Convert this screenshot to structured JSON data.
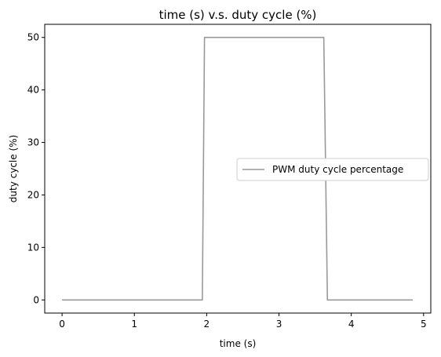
{
  "chart_data": {
    "type": "line",
    "title": "time (s) v.s. duty cycle (%)",
    "xlabel": "time (s)",
    "ylabel": "duty cycle (%)",
    "xlim": [
      -0.24,
      5.1
    ],
    "ylim": [
      -2.5,
      52.5
    ],
    "xticks": [
      0,
      1,
      2,
      3,
      4,
      5
    ],
    "yticks": [
      0,
      10,
      20,
      30,
      40,
      50
    ],
    "xtick_labels": [
      "0",
      "1",
      "2",
      "3",
      "4",
      "5"
    ],
    "ytick_labels": [
      "0",
      "10",
      "20",
      "30",
      "40",
      "50"
    ],
    "grid": false,
    "legend_position": "center-right",
    "series": [
      {
        "name": "PWM duty cycle percentage",
        "color": "#999999",
        "x": [
          0.0,
          1.94,
          1.97,
          3.62,
          3.67,
          4.85
        ],
        "y": [
          0,
          0,
          50,
          50,
          0,
          0
        ]
      }
    ]
  }
}
